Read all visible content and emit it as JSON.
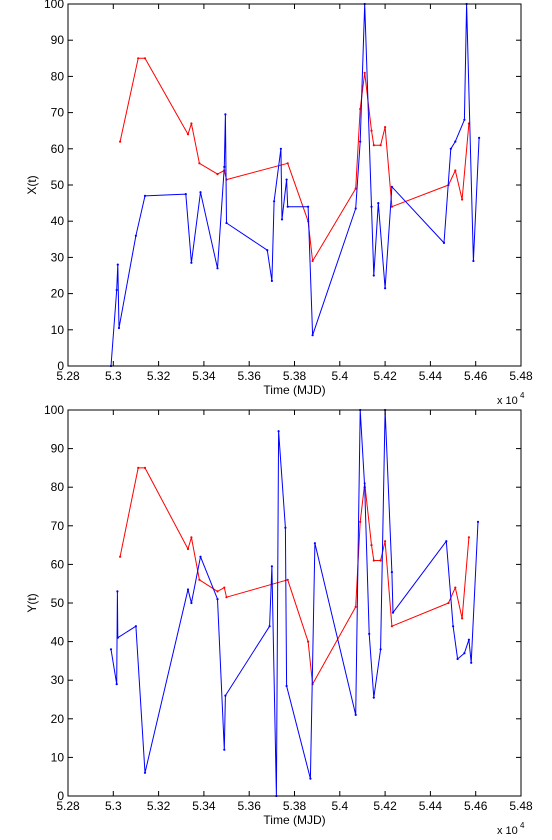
{
  "chart_data": [
    {
      "type": "line",
      "ylabel": "X(t)",
      "xlabel": "Time (MJD)",
      "x_scale_label": "x 10",
      "x_scale_exponent": "4",
      "xlim": [
        52800,
        54800
      ],
      "ylim": [
        0,
        100
      ],
      "xticks": [
        52800,
        53000,
        53200,
        53400,
        53600,
        53800,
        54000,
        54200,
        54400,
        54600,
        54800
      ],
      "xtick_labels": [
        "5.28",
        "5.3",
        "5.32",
        "5.34",
        "5.36",
        "5.38",
        "5.4",
        "5.42",
        "5.44",
        "5.46",
        "5.48"
      ],
      "yticks": [
        0,
        10,
        20,
        30,
        40,
        50,
        60,
        70,
        80,
        90,
        100
      ],
      "ytick_labels": [
        "0",
        "10",
        "20",
        "30",
        "40",
        "50",
        "60",
        "70",
        "80",
        "90",
        "100"
      ],
      "series": [
        {
          "color": "#ff0000",
          "points": [
            [
              53030,
              62
            ],
            [
              53110,
              85
            ],
            [
              53140,
              85
            ],
            [
              53330,
              64
            ],
            [
              53345,
              67
            ],
            [
              53380,
              56
            ],
            [
              53460,
              53
            ],
            [
              53490,
              54
            ],
            [
              53500,
              51.5
            ],
            [
              53770,
              56
            ],
            [
              53860,
              40
            ],
            [
              53880,
              29
            ],
            [
              54070,
              49
            ],
            [
              54090,
              71
            ],
            [
              54110,
              81
            ],
            [
              54140,
              65
            ],
            [
              54150,
              61
            ],
            [
              54180,
              61
            ],
            [
              54200,
              66
            ],
            [
              54230,
              44
            ],
            [
              54480,
              50
            ],
            [
              54510,
              54
            ],
            [
              54540,
              46
            ],
            [
              54570,
              67
            ]
          ]
        },
        {
          "color": "#0000ff",
          "points": [
            [
              52990,
              0
            ],
            [
              53015,
              21
            ],
            [
              53020,
              28
            ],
            [
              53025,
              10.5
            ],
            [
              53100,
              36
            ],
            [
              53140,
              47
            ],
            [
              53320,
              47.5
            ],
            [
              53345,
              28.5
            ],
            [
              53385,
              48
            ],
            [
              53460,
              27
            ],
            [
              53490,
              55
            ],
            [
              53495,
              69.5
            ],
            [
              53500,
              39.5
            ],
            [
              53680,
              32
            ],
            [
              53700,
              23.5
            ],
            [
              53710,
              45.5
            ],
            [
              53740,
              60
            ],
            [
              53745,
              40.5
            ],
            [
              53765,
              51.5
            ],
            [
              53770,
              44
            ],
            [
              53860,
              44
            ],
            [
              53880,
              8.5
            ],
            [
              54070,
              43.5
            ],
            [
              54090,
              62
            ],
            [
              54110,
              100
            ],
            [
              54140,
              44
            ],
            [
              54150,
              25
            ],
            [
              54170,
              45
            ],
            [
              54200,
              21.5
            ],
            [
              54230,
              49.5
            ],
            [
              54460,
              34
            ],
            [
              54490,
              60
            ],
            [
              54510,
              62
            ],
            [
              54550,
              68
            ],
            [
              54560,
              100
            ],
            [
              54590,
              29
            ],
            [
              54615,
              63
            ]
          ]
        }
      ]
    },
    {
      "type": "line",
      "ylabel": "Y(t)",
      "xlabel": "Time (MJD)",
      "x_scale_label": "x 10",
      "x_scale_exponent": "4",
      "xlim": [
        52800,
        54800
      ],
      "ylim": [
        0,
        100
      ],
      "xticks": [
        52800,
        53000,
        53200,
        53400,
        53600,
        53800,
        54000,
        54200,
        54400,
        54600,
        54800
      ],
      "xtick_labels": [
        "5.28",
        "5.3",
        "5.32",
        "5.34",
        "5.36",
        "5.38",
        "5.4",
        "5.42",
        "5.44",
        "5.46",
        "5.48"
      ],
      "yticks": [
        0,
        10,
        20,
        30,
        40,
        50,
        60,
        70,
        80,
        90,
        100
      ],
      "ytick_labels": [
        "0",
        "10",
        "20",
        "30",
        "40",
        "50",
        "60",
        "70",
        "80",
        "90",
        "100"
      ],
      "series": [
        {
          "color": "#ff0000",
          "points": [
            [
              53030,
              62
            ],
            [
              53110,
              85
            ],
            [
              53140,
              85
            ],
            [
              53330,
              64
            ],
            [
              53345,
              67
            ],
            [
              53380,
              56
            ],
            [
              53460,
              53
            ],
            [
              53490,
              54
            ],
            [
              53500,
              51.5
            ],
            [
              53770,
              56
            ],
            [
              53860,
              40
            ],
            [
              53880,
              29
            ],
            [
              54070,
              49
            ],
            [
              54090,
              71
            ],
            [
              54110,
              81
            ],
            [
              54140,
              65
            ],
            [
              54150,
              61
            ],
            [
              54180,
              61
            ],
            [
              54200,
              66
            ],
            [
              54230,
              44
            ],
            [
              54480,
              50
            ],
            [
              54510,
              54
            ],
            [
              54540,
              46
            ],
            [
              54570,
              67
            ]
          ]
        },
        {
          "color": "#0000ff",
          "points": [
            [
              52990,
              38
            ],
            [
              53015,
              29
            ],
            [
              53018,
              53
            ],
            [
              53020,
              41
            ],
            [
              53100,
              44
            ],
            [
              53140,
              6
            ],
            [
              53330,
              53.5
            ],
            [
              53345,
              50
            ],
            [
              53385,
              62
            ],
            [
              53460,
              51
            ],
            [
              53490,
              12
            ],
            [
              53495,
              26
            ],
            [
              53690,
              44
            ],
            [
              53700,
              59.5
            ],
            [
              53720,
              0
            ],
            [
              53730,
              94.5
            ],
            [
              53760,
              69.5
            ],
            [
              53765,
              28.5
            ],
            [
              53870,
              4.5
            ],
            [
              53890,
              65.5
            ],
            [
              54070,
              21
            ],
            [
              54090,
              100
            ],
            [
              54110,
              80
            ],
            [
              54130,
              42
            ],
            [
              54150,
              25.5
            ],
            [
              54180,
              38
            ],
            [
              54200,
              100
            ],
            [
              54230,
              58
            ],
            [
              54235,
              47.5
            ],
            [
              54470,
              66
            ],
            [
              54500,
              44
            ],
            [
              54520,
              35.5
            ],
            [
              54550,
              37
            ],
            [
              54570,
              40.5
            ],
            [
              54580,
              34.5
            ],
            [
              54610,
              71
            ]
          ]
        }
      ]
    }
  ]
}
